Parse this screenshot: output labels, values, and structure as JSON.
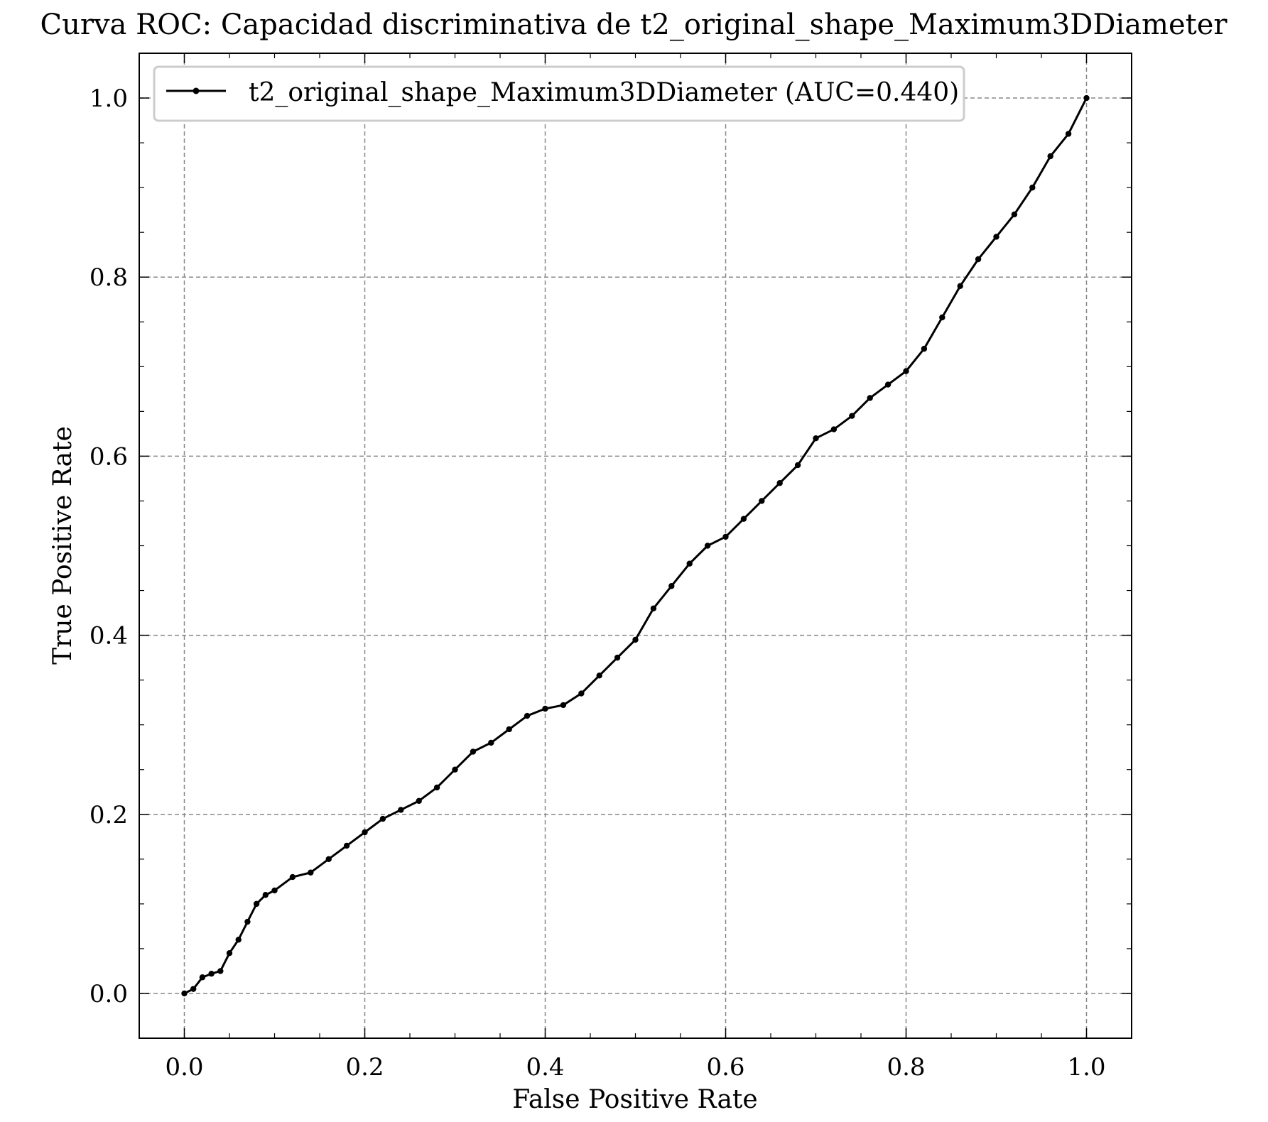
{
  "chart_data": {
    "type": "line",
    "title": "Curva ROC: Capacidad discriminativa de t2_original_shape_Maximum3DDiameter",
    "xlabel": "False Positive Rate",
    "ylabel": "True Positive Rate",
    "xlim": [
      -0.05,
      1.05
    ],
    "ylim": [
      -0.05,
      1.05
    ],
    "xticks": [
      "0.0",
      "0.2",
      "0.4",
      "0.6",
      "0.8",
      "1.0"
    ],
    "yticks": [
      "0.0",
      "0.2",
      "0.4",
      "0.6",
      "0.8",
      "1.0"
    ],
    "grid": true,
    "legend_position": "top-left",
    "series": [
      {
        "name": "t2_original_shape_Maximum3DDiameter (AUC=0.440)",
        "color": "#000000",
        "marker": "dot",
        "x": [
          0.0,
          0.01,
          0.02,
          0.03,
          0.04,
          0.05,
          0.06,
          0.07,
          0.08,
          0.09,
          0.1,
          0.12,
          0.14,
          0.16,
          0.18,
          0.2,
          0.22,
          0.24,
          0.26,
          0.28,
          0.3,
          0.32,
          0.34,
          0.36,
          0.38,
          0.4,
          0.42,
          0.44,
          0.46,
          0.48,
          0.5,
          0.52,
          0.54,
          0.56,
          0.58,
          0.6,
          0.62,
          0.64,
          0.66,
          0.68,
          0.7,
          0.72,
          0.74,
          0.76,
          0.78,
          0.8,
          0.82,
          0.84,
          0.86,
          0.88,
          0.9,
          0.92,
          0.94,
          0.96,
          0.98,
          1.0
        ],
        "y": [
          0.0,
          0.005,
          0.018,
          0.022,
          0.025,
          0.045,
          0.06,
          0.08,
          0.1,
          0.11,
          0.115,
          0.13,
          0.135,
          0.15,
          0.165,
          0.18,
          0.195,
          0.205,
          0.215,
          0.23,
          0.25,
          0.27,
          0.28,
          0.295,
          0.31,
          0.318,
          0.322,
          0.335,
          0.355,
          0.375,
          0.395,
          0.43,
          0.455,
          0.48,
          0.5,
          0.51,
          0.53,
          0.55,
          0.57,
          0.59,
          0.62,
          0.63,
          0.645,
          0.665,
          0.68,
          0.695,
          0.72,
          0.755,
          0.79,
          0.82,
          0.845,
          0.87,
          0.9,
          0.935,
          0.96,
          1.0
        ]
      }
    ]
  }
}
